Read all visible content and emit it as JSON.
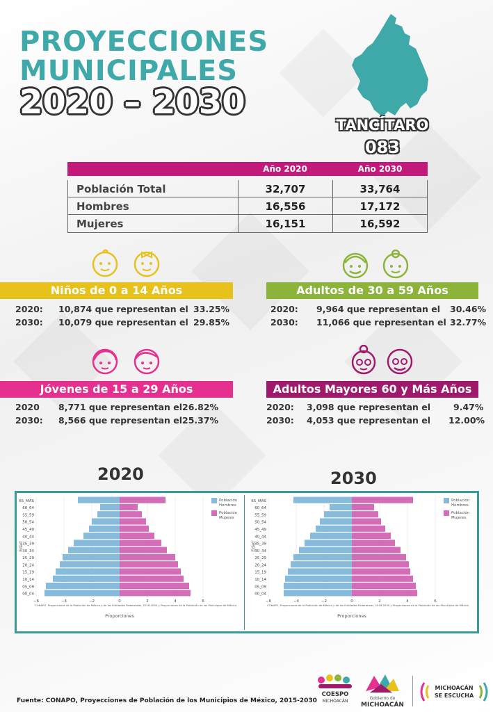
{
  "header": {
    "title_line1": "PROYECCIONES",
    "title_line2": "MUNICIPALES",
    "title_line3": "2020 – 2030",
    "municipality": "TANCÍTARO",
    "code": "083"
  },
  "colors": {
    "teal": "#3fa9a9",
    "magenta": "#c2197a",
    "yellow": "#e8c21c",
    "green": "#8cb43a",
    "pink": "#e5308f",
    "purple": "#a01a6c",
    "men": "#86bbdc",
    "women": "#d56cb8"
  },
  "summary_table": {
    "col_2020": "Año 2020",
    "col_2030": "Año 2030",
    "rows": [
      {
        "label": "Población Total",
        "v2020": "32,707",
        "v2030": "33,764"
      },
      {
        "label": "Hombres",
        "v2020": "16,556",
        "v2030": "17,172"
      },
      {
        "label": "Mujeres",
        "v2020": "16,151",
        "v2030": "16,592"
      }
    ]
  },
  "groups": {
    "ninos": {
      "title": "Niños de 0 a 14 Años",
      "r1": {
        "year": "2020:",
        "text": "10,874 que representan el",
        "pct": "33.25%"
      },
      "r2": {
        "year": "2030:",
        "text": "10,079 que representan el",
        "pct": "29.85%"
      }
    },
    "adultos": {
      "title": "Adultos de 30 a 59 Años",
      "r1": {
        "year": "2020:",
        "text": "9,964 que representan el",
        "pct": "30.46%"
      },
      "r2": {
        "year": "2030:",
        "text": "11,066 que representan el",
        "pct": "32.77%"
      }
    },
    "jovenes": {
      "title": "Jóvenes de 15 a 29 Años",
      "r1": {
        "year": "2020",
        "text": "8,771 que representan el",
        "pct": "26.82%"
      },
      "r2": {
        "year": "2030:",
        "text": "8,566 que representan el",
        "pct": "25.37%"
      }
    },
    "mayores": {
      "title": "Adultos Mayores  60 y Más Años",
      "r1": {
        "year": "2020:",
        "text": "3,098 que representan el",
        "pct": "9.47%"
      },
      "r2": {
        "year": "2030:",
        "text": "4,053 que representan el",
        "pct": "12.00%"
      }
    }
  },
  "charts": {
    "label_2020": "2020",
    "label_2030": "2030"
  },
  "chart_data": [
    {
      "type": "bar",
      "orientation": "horizontal-pyramid",
      "year": "2020",
      "categories": [
        "00_04",
        "05_09",
        "10_14",
        "15_19",
        "20_24",
        "25_29",
        "30_34",
        "35_39",
        "40_44",
        "45_49",
        "50_54",
        "55_59",
        "60_64",
        "65_MAS"
      ],
      "series": [
        {
          "name": "Población Hombres",
          "values": [
            -5.4,
            -5.3,
            -4.8,
            -4.6,
            -4.3,
            -4.1,
            -3.7,
            -3.3,
            -2.6,
            -2.2,
            -2.0,
            -1.6,
            -1.4,
            -3.0
          ]
        },
        {
          "name": "Población Mujeres",
          "values": [
            5.1,
            5.0,
            4.6,
            4.4,
            4.2,
            4.0,
            3.4,
            3.0,
            2.5,
            2.1,
            1.9,
            1.6,
            1.3,
            3.3
          ]
        }
      ],
      "xlabel": "Proporciones",
      "ylabel": "Edad",
      "xlim": [
        -6,
        6
      ],
      "xticks": [
        "−6",
        "−4",
        "−2",
        "0",
        "2",
        "4",
        "6"
      ],
      "legend": [
        "Población Hombres",
        "Población Mujeres"
      ],
      "legend_lines": [
        [
          "Población",
          "Hombres"
        ],
        [
          "Población",
          "Mujeres"
        ]
      ],
      "legend_position": "top-right",
      "source_note": "CONAPO, Proyecciones de la Población de México y de las Entidades Federativas, 2016-2050 y Proyecciones de la Población de los Municipios de México,"
    },
    {
      "type": "bar",
      "orientation": "horizontal-pyramid",
      "year": "2030",
      "categories": [
        "00_04",
        "05_09",
        "10_14",
        "15_19",
        "20_24",
        "25_29",
        "30_34",
        "35_39",
        "40_44",
        "45_49",
        "50_54",
        "55_59",
        "60_64",
        "65_MAS"
      ],
      "series": [
        {
          "name": "Población Hombres",
          "values": [
            -4.9,
            -4.9,
            -4.8,
            -4.6,
            -4.4,
            -4.2,
            -3.8,
            -3.4,
            -3.0,
            -2.6,
            -2.3,
            -2.0,
            -1.6,
            -4.2
          ]
        },
        {
          "name": "Población Mujeres",
          "values": [
            4.7,
            4.6,
            4.4,
            4.2,
            4.1,
            3.9,
            3.5,
            3.1,
            2.8,
            2.4,
            2.1,
            1.9,
            1.6,
            4.4
          ]
        }
      ],
      "xlabel": "Proporciones",
      "ylabel": "Edad",
      "xlim": [
        -6,
        6
      ],
      "xticks": [
        "−6",
        "−4",
        "−2",
        "0",
        "2",
        "4",
        "6"
      ],
      "legend": [
        "Población Hombres",
        "Población Mujeres"
      ],
      "legend_lines": [
        [
          "Población",
          "Hombres"
        ],
        [
          "Población",
          "Mujeres"
        ]
      ],
      "legend_position": "top-right",
      "source_note": "CONAPO, Proyecciones de la Población de México y de las Entidades Federativas, 2016-2050 y Proyecciones de la Población de los Municipios de México,"
    }
  ],
  "footer": {
    "source": "Fuente: CONAPO, Proyecciones de Población de los Municipios de México, 2015-2030",
    "logo1_line1": "COESPO",
    "logo1_line2": "MICHOACÁN",
    "logo2_line1": "Gobierno de",
    "logo2_line2": "MICHOACÁN",
    "logo3_line1": "MICHOACÁN",
    "logo3_line2": "SE ESCUCHA"
  }
}
